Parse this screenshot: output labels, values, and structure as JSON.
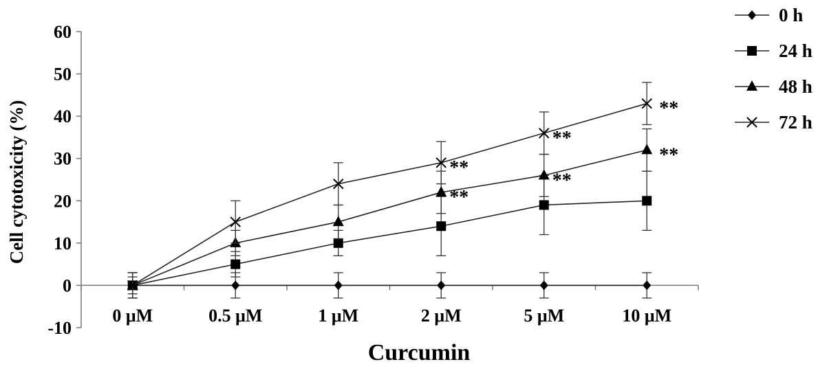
{
  "chart_data": {
    "type": "line",
    "xlabel": "Curcumin",
    "ylabel": "Cell cytotoxicity (%)",
    "categories": [
      "0 μM",
      "0.5 μM",
      "1 μM",
      "2 μM",
      "5 μM",
      "10 μM"
    ],
    "ylim": [
      -10,
      60
    ],
    "yticks": [
      "-10",
      "0",
      "10",
      "20",
      "30",
      "40",
      "50",
      "60"
    ],
    "legend_position": "top-right",
    "grid": false,
    "series": [
      {
        "name": "0 h",
        "marker": "diamond",
        "values": [
          0,
          0,
          0,
          0,
          0,
          0
        ],
        "errors": [
          3,
          3,
          3,
          3,
          3,
          3
        ]
      },
      {
        "name": "24 h",
        "marker": "square",
        "values": [
          0,
          5,
          10,
          14,
          19,
          20
        ],
        "errors": [
          3,
          3,
          3,
          7,
          7,
          7
        ]
      },
      {
        "name": "48 h",
        "marker": "triangle",
        "values": [
          0,
          10,
          15,
          22,
          26,
          32
        ],
        "errors": [
          3,
          3,
          4,
          5,
          5,
          5
        ]
      },
      {
        "name": "72 h",
        "marker": "cross",
        "values": [
          0,
          15,
          24,
          29,
          36,
          43
        ],
        "errors": [
          2,
          5,
          5,
          5,
          5,
          5
        ]
      }
    ],
    "annotations": [
      {
        "text": "**",
        "series": "48 h",
        "category": "2 μM"
      },
      {
        "text": "**",
        "series": "48 h",
        "category": "5 μM"
      },
      {
        "text": "**",
        "series": "48 h",
        "category": "10 μM"
      },
      {
        "text": "**",
        "series": "72 h",
        "category": "2 μM"
      },
      {
        "text": "**",
        "series": "72 h",
        "category": "5 μM"
      },
      {
        "text": "**",
        "series": "72 h",
        "category": "10 μM"
      }
    ]
  }
}
